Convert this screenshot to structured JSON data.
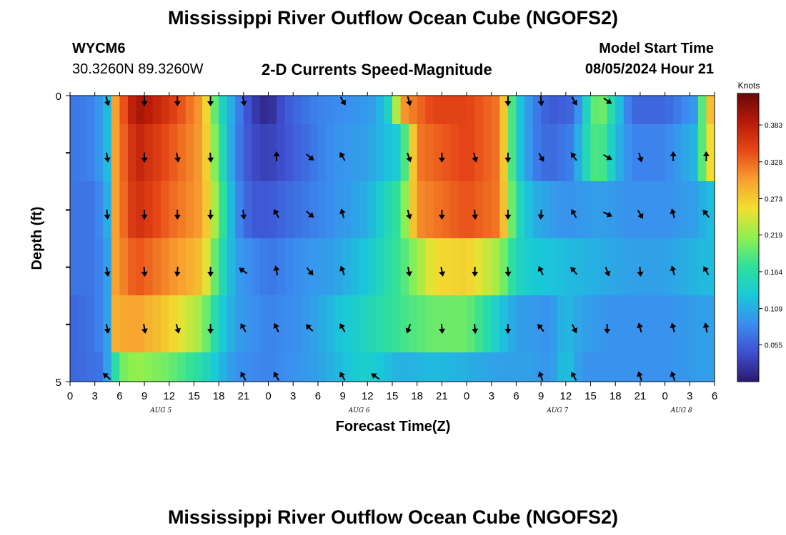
{
  "page": {
    "title": "Mississippi River Outflow Ocean Cube (NGOFS2)",
    "station_id": "WYCM6",
    "coords": "30.3260N  89.3260W",
    "subtitle": "2-D Currents Speed-Magnitude",
    "model_label": "Model Start Time",
    "model_time": "08/05/2024 Hour 21",
    "footer_title": "Mississippi River Outflow Ocean Cube (NGOFS2)"
  },
  "chart_data": {
    "type": "heatmap",
    "title": "2-D Currents Speed-Magnitude",
    "xlabel": "Forecast Time(Z)",
    "ylabel": "Depth (ft)",
    "x_ticks": [
      "0",
      "3",
      "6",
      "9",
      "12",
      "15",
      "18",
      "21",
      "0",
      "3",
      "6",
      "9",
      "12",
      "15",
      "18",
      "21",
      "0",
      "3",
      "6",
      "9",
      "12",
      "15",
      "18",
      "21",
      "0",
      "3",
      "6"
    ],
    "y_ticks": [
      "0",
      "5"
    ],
    "ylim": [
      0,
      5
    ],
    "date_labels": [
      {
        "label": "AUG 5",
        "hour": 11
      },
      {
        "label": "AUG 6",
        "hour": 35
      },
      {
        "label": "AUG 7",
        "hour": 59
      },
      {
        "label": "AUG 8",
        "hour": 74
      }
    ],
    "time_range_hours": [
      0,
      78
    ],
    "depth_layers": 5,
    "colorbar": {
      "label": "Knots",
      "ticks": [
        "0.383",
        "0.328",
        "0.273",
        "0.219",
        "0.164",
        "0.109",
        "0.055"
      ],
      "range": [
        0,
        0.43
      ],
      "colors": [
        "#2a1a70",
        "#3f4fd0",
        "#3c8cf0",
        "#19c9d8",
        "#2fe09a",
        "#8ef050",
        "#f0e030",
        "#f8a030",
        "#e84818",
        "#b81a08",
        "#6a0808"
      ]
    },
    "speed_profiles": [
      [
        [
          0,
          0.07
        ],
        [
          3,
          0.08
        ],
        [
          4.5,
          0.12
        ],
        [
          5.5,
          0.3
        ],
        [
          8,
          0.4
        ],
        [
          12,
          0.36
        ],
        [
          16,
          0.3
        ],
        [
          18,
          0.16
        ],
        [
          20,
          0.09
        ],
        [
          22,
          0.03
        ],
        [
          24,
          0.01
        ],
        [
          26,
          0.05
        ],
        [
          30,
          0.08
        ],
        [
          34,
          0.09
        ],
        [
          37,
          0.1
        ],
        [
          39,
          0.16
        ],
        [
          40,
          0.3
        ],
        [
          44,
          0.35
        ],
        [
          48,
          0.35
        ],
        [
          52,
          0.32
        ],
        [
          54,
          0.14
        ],
        [
          56,
          0.08
        ],
        [
          58,
          0.05
        ],
        [
          61,
          0.06
        ],
        [
          62,
          0.12
        ],
        [
          64,
          0.22
        ],
        [
          66,
          0.14
        ],
        [
          68,
          0.06
        ],
        [
          72,
          0.06
        ],
        [
          76,
          0.1
        ],
        [
          77,
          0.28
        ]
      ],
      [
        [
          0,
          0.07
        ],
        [
          3,
          0.08
        ],
        [
          4.5,
          0.12
        ],
        [
          5.5,
          0.3
        ],
        [
          8,
          0.38
        ],
        [
          12,
          0.34
        ],
        [
          16,
          0.3
        ],
        [
          18,
          0.18
        ],
        [
          20,
          0.08
        ],
        [
          22,
          0.04
        ],
        [
          24,
          0.03
        ],
        [
          28,
          0.06
        ],
        [
          32,
          0.09
        ],
        [
          36,
          0.1
        ],
        [
          40,
          0.14
        ],
        [
          42,
          0.32
        ],
        [
          48,
          0.35
        ],
        [
          52,
          0.32
        ],
        [
          54,
          0.14
        ],
        [
          56,
          0.08
        ],
        [
          58,
          0.06
        ],
        [
          61,
          0.08
        ],
        [
          62,
          0.14
        ],
        [
          64,
          0.2
        ],
        [
          66,
          0.12
        ],
        [
          68,
          0.08
        ],
        [
          72,
          0.08
        ],
        [
          76,
          0.12
        ],
        [
          77,
          0.26
        ]
      ],
      [
        [
          0,
          0.07
        ],
        [
          3,
          0.07
        ],
        [
          4.5,
          0.11
        ],
        [
          5.5,
          0.3
        ],
        [
          8,
          0.37
        ],
        [
          12,
          0.33
        ],
        [
          16,
          0.3
        ],
        [
          18,
          0.2
        ],
        [
          20,
          0.09
        ],
        [
          22,
          0.05
        ],
        [
          24,
          0.05
        ],
        [
          28,
          0.07
        ],
        [
          32,
          0.09
        ],
        [
          36,
          0.11
        ],
        [
          40,
          0.18
        ],
        [
          42,
          0.31
        ],
        [
          48,
          0.34
        ],
        [
          52,
          0.32
        ],
        [
          54,
          0.16
        ],
        [
          56,
          0.11
        ],
        [
          60,
          0.09
        ],
        [
          64,
          0.1
        ],
        [
          68,
          0.09
        ],
        [
          72,
          0.09
        ],
        [
          76,
          0.1
        ],
        [
          77,
          0.12
        ]
      ],
      [
        [
          0,
          0.07
        ],
        [
          3,
          0.07
        ],
        [
          4.5,
          0.1
        ],
        [
          5.5,
          0.3
        ],
        [
          8,
          0.34
        ],
        [
          12,
          0.31
        ],
        [
          16,
          0.28
        ],
        [
          18,
          0.17
        ],
        [
          20,
          0.1
        ],
        [
          24,
          0.07
        ],
        [
          28,
          0.09
        ],
        [
          32,
          0.1
        ],
        [
          36,
          0.13
        ],
        [
          40,
          0.18
        ],
        [
          44,
          0.26
        ],
        [
          48,
          0.27
        ],
        [
          52,
          0.22
        ],
        [
          54,
          0.15
        ],
        [
          56,
          0.13
        ],
        [
          60,
          0.12
        ],
        [
          64,
          0.11
        ],
        [
          68,
          0.1
        ],
        [
          72,
          0.1
        ],
        [
          77,
          0.12
        ]
      ],
      [
        [
          0,
          0.06
        ],
        [
          3,
          0.07
        ],
        [
          4.5,
          0.1
        ],
        [
          5.5,
          0.29
        ],
        [
          8,
          0.3
        ],
        [
          12,
          0.27
        ],
        [
          16,
          0.22
        ],
        [
          18,
          0.14
        ],
        [
          20,
          0.1
        ],
        [
          24,
          0.08
        ],
        [
          28,
          0.09
        ],
        [
          32,
          0.12
        ],
        [
          36,
          0.15
        ],
        [
          40,
          0.18
        ],
        [
          44,
          0.2
        ],
        [
          48,
          0.2
        ],
        [
          50,
          0.17
        ],
        [
          52,
          0.13
        ],
        [
          54,
          0.1
        ],
        [
          58,
          0.09
        ],
        [
          60,
          0.12
        ],
        [
          62,
          0.1
        ],
        [
          66,
          0.09
        ],
        [
          72,
          0.09
        ],
        [
          77,
          0.1
        ]
      ],
      [
        [
          0,
          0.06
        ],
        [
          4,
          0.07
        ],
        [
          5,
          0.13
        ],
        [
          6,
          0.2
        ],
        [
          8,
          0.22
        ],
        [
          12,
          0.2
        ],
        [
          16,
          0.16
        ],
        [
          18,
          0.12
        ],
        [
          20,
          0.09
        ],
        [
          24,
          0.08
        ],
        [
          30,
          0.1
        ],
        [
          34,
          0.13
        ],
        [
          36,
          0.14
        ],
        [
          40,
          0.11
        ],
        [
          44,
          0.12
        ],
        [
          48,
          0.11
        ],
        [
          52,
          0.1
        ],
        [
          56,
          0.1
        ],
        [
          58,
          0.09
        ],
        [
          60,
          0.13
        ],
        [
          62,
          0.09
        ],
        [
          66,
          0.09
        ],
        [
          72,
          0.09
        ],
        [
          77,
          0.1
        ]
      ]
    ],
    "arrow_hours": [
      4.5,
      9,
      13,
      17,
      21,
      25,
      29,
      33,
      37,
      41,
      45,
      49,
      53,
      57,
      61,
      65,
      69,
      73,
      77
    ],
    "arrow_rows": [
      {
        "depth_row": 0,
        "directions": [
          165,
          180,
          180,
          180,
          170,
          null,
          null,
          150,
          null,
          165,
          null,
          null,
          180,
          175,
          150,
          125,
          null,
          null,
          null
        ]
      },
      {
        "depth_row": 1,
        "directions": [
          170,
          180,
          170,
          175,
          null,
          0,
          130,
          330,
          null,
          160,
          180,
          165,
          180,
          150,
          325,
          120,
          165,
          0,
          0
        ]
      },
      {
        "depth_row": 2,
        "directions": [
          175,
          180,
          180,
          180,
          175,
          330,
          130,
          345,
          null,
          165,
          180,
          175,
          180,
          185,
          330,
          115,
          150,
          345,
          320
        ]
      },
      {
        "depth_row": 3,
        "directions": [
          170,
          175,
          185,
          180,
          305,
          350,
          140,
          340,
          null,
          170,
          170,
          180,
          175,
          335,
          320,
          160,
          175,
          345,
          330
        ]
      },
      {
        "depth_row": 4,
        "directions": [
          170,
          170,
          165,
          180,
          330,
          335,
          315,
          330,
          null,
          200,
          175,
          175,
          180,
          320,
          155,
          180,
          345,
          345,
          350
        ]
      },
      {
        "depth_row": 5,
        "directions": [
          310,
          null,
          null,
          null,
          330,
          330,
          null,
          330,
          305,
          null,
          null,
          null,
          null,
          340,
          330,
          null,
          340,
          340,
          null
        ]
      }
    ]
  }
}
